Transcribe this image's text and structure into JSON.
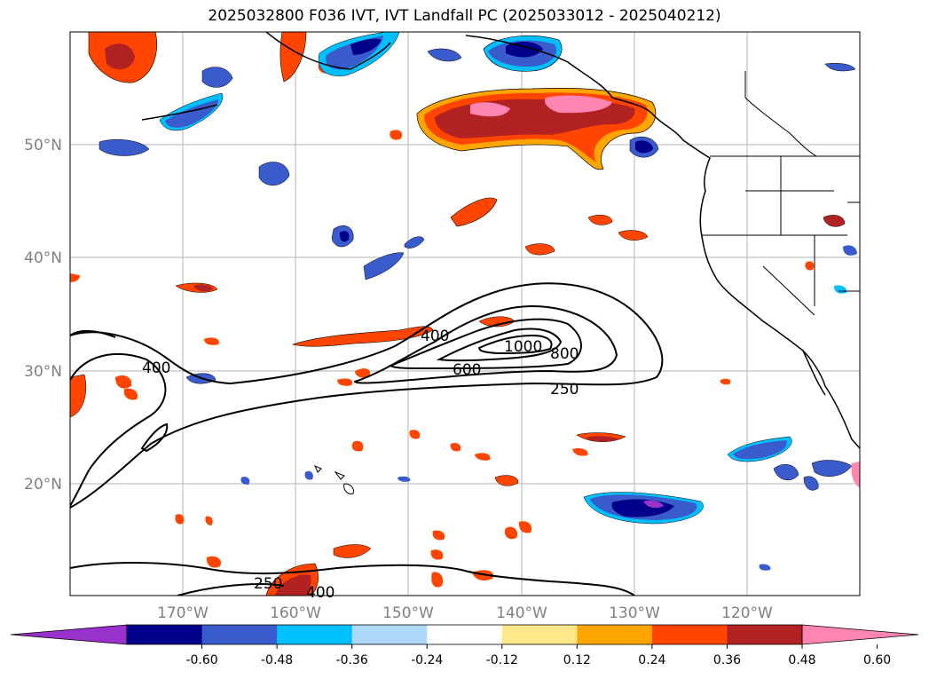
{
  "title": "2025032800 F036 IVT, IVT Landfall PC (2025033012 - 2025040212)",
  "lat_ticks": [
    "50°N",
    "40°N",
    "30°N",
    "20°N"
  ],
  "lon_ticks": [
    "170°W",
    "160°W",
    "150°W",
    "140°W",
    "130°W",
    "120°W"
  ],
  "contour_labels": [
    "250",
    "400",
    "600",
    "800",
    "1000"
  ],
  "colorbar": {
    "ticks": [
      "-0.60",
      "-0.48",
      "-0.36",
      "-0.24",
      "-0.12",
      "0.12",
      "0.24",
      "0.36",
      "0.48",
      "0.60"
    ],
    "colors": [
      "#9932cc",
      "#00008b",
      "#3a5bcc",
      "#00bfff",
      "#add8f7",
      "#ffffff",
      "#ffe88a",
      "#ffa500",
      "#ff4500",
      "#b22222",
      "#ff85b3"
    ]
  }
}
